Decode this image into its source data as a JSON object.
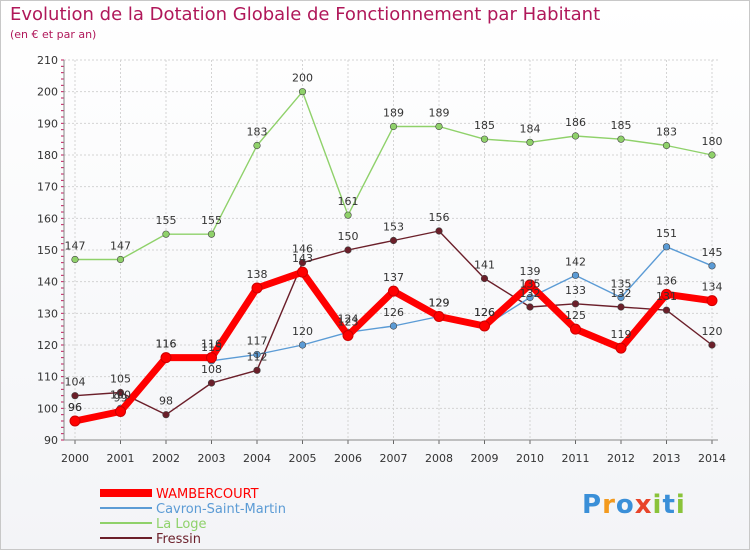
{
  "header": {
    "title": "Evolution de la Dotation Globale de Fonctionnement par Habitant",
    "subtitle": "(en € et par an)"
  },
  "logo": {
    "text": "Proxiti",
    "letters": [
      "P",
      "r",
      "o",
      "x",
      "i",
      "t",
      "i"
    ],
    "colors": [
      "#3a8fd8",
      "#f39a1e",
      "#3a8fd8",
      "#e8442a",
      "#8ac33a",
      "#3a8fd8",
      "#8ac33a"
    ]
  },
  "chart_data": {
    "type": "line",
    "title": "Evolution de la Dotation Globale de Fonctionnement par Habitant",
    "ylabel": "(en € et par an)",
    "xlabel": "",
    "x": [
      2000,
      2001,
      2002,
      2003,
      2004,
      2005,
      2006,
      2007,
      2008,
      2009,
      2010,
      2011,
      2012,
      2013,
      2014
    ],
    "ylim": [
      90,
      210
    ],
    "yticks": [
      90,
      100,
      110,
      120,
      130,
      140,
      150,
      160,
      170,
      180,
      190,
      200,
      210
    ],
    "grid": true,
    "legend": "bottom-left",
    "series": [
      {
        "name": "La Loge",
        "color": "#8fd16a",
        "values": [
          147,
          147,
          155,
          155,
          183,
          200,
          161,
          189,
          189,
          185,
          184,
          186,
          185,
          183,
          180
        ]
      },
      {
        "name": "Fressin",
        "color": "#6b1f2a",
        "values": [
          104,
          105,
          98,
          108,
          112,
          146,
          150,
          153,
          156,
          141,
          132,
          133,
          132,
          131,
          120
        ]
      },
      {
        "name": "Cavron-Saint-Martin",
        "color": "#5b9bd5",
        "values": [
          96,
          100,
          116,
          115,
          117,
          120,
          124,
          126,
          129,
          126,
          135,
          142,
          135,
          151,
          145
        ]
      },
      {
        "name": "WAMBERCOURT",
        "color": "#ff0000",
        "values": [
          96,
          99,
          116,
          116,
          138,
          143,
          123,
          137,
          129,
          126,
          139,
          125,
          119,
          136,
          134
        ]
      }
    ]
  }
}
